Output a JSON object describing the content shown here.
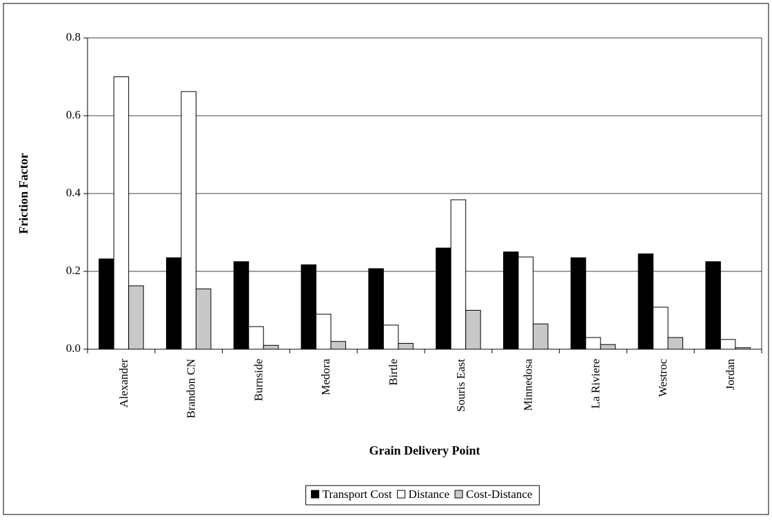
{
  "chart_data": {
    "type": "bar",
    "xlabel": "Grain Delivery Point",
    "ylabel": "Friction Factor",
    "categories": [
      "Alexander",
      "Brandon CN",
      "Burnside",
      "Medora",
      "Birtle",
      "Souris East",
      "Minnedosa",
      "La Riviere",
      "Westroc",
      "Jordan"
    ],
    "series": [
      {
        "name": "Transport Cost",
        "color": "#000000",
        "values": [
          0.232,
          0.235,
          0.225,
          0.217,
          0.207,
          0.26,
          0.25,
          0.235,
          0.245,
          0.225
        ]
      },
      {
        "name": "Distance",
        "color": "#ffffff",
        "values": [
          0.7,
          0.662,
          0.058,
          0.09,
          0.062,
          0.384,
          0.237,
          0.03,
          0.108,
          0.025
        ]
      },
      {
        "name": "Cost-Distance",
        "color": "#c8c8c8",
        "values": [
          0.163,
          0.155,
          0.01,
          0.02,
          0.015,
          0.1,
          0.065,
          0.012,
          0.03,
          0.004
        ]
      }
    ],
    "ylim": [
      0,
      0.8
    ],
    "yticks": [
      {
        "value": 0,
        "label": "0.0"
      },
      0.2,
      0.4,
      0.6,
      0.8
    ],
    "grid": true,
    "legend": "bottom"
  }
}
